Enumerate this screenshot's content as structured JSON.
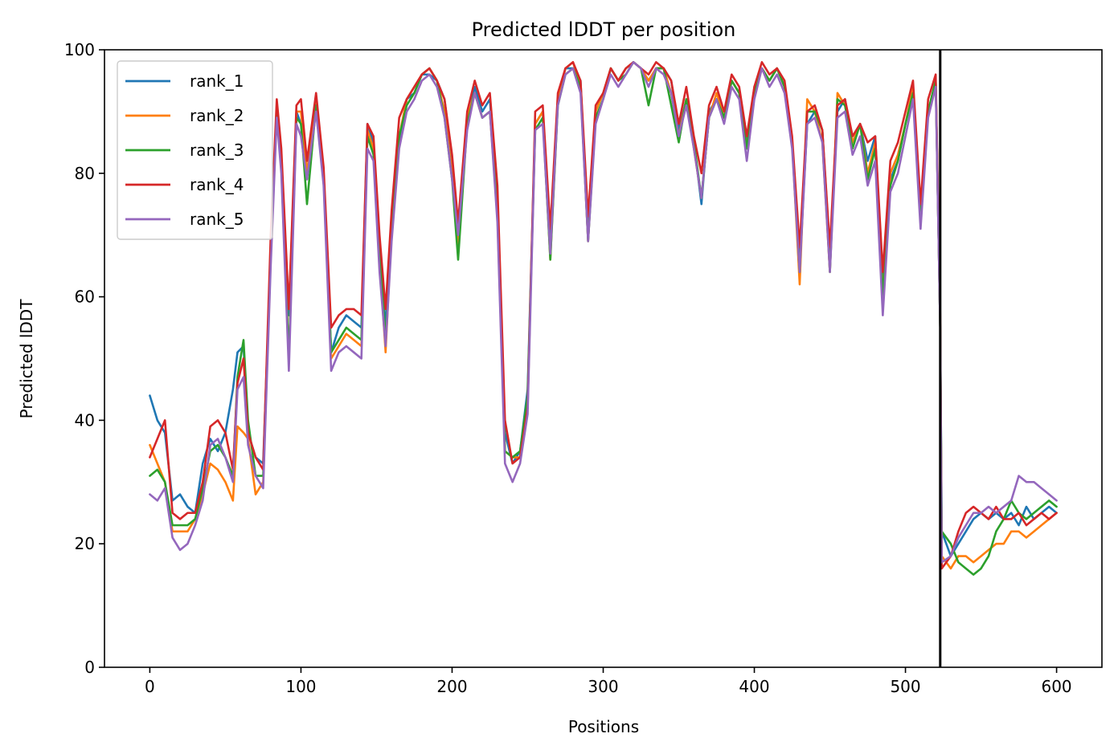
{
  "chart_data": {
    "type": "line",
    "title": "Predicted lDDT per position",
    "xlabel": "Positions",
    "ylabel": "Predicted lDDT",
    "xlim": [
      -30,
      630
    ],
    "ylim": [
      0,
      100
    ],
    "xticks": [
      0,
      100,
      200,
      300,
      400,
      500,
      600
    ],
    "yticks": [
      0,
      20,
      40,
      60,
      80,
      100
    ],
    "grid": false,
    "legend_position": "upper-left",
    "vertical_line_x": 523,
    "x": [
      0,
      5,
      10,
      15,
      20,
      25,
      30,
      35,
      40,
      45,
      50,
      55,
      58,
      62,
      65,
      70,
      75,
      80,
      84,
      87,
      92,
      97,
      100,
      104,
      110,
      115,
      120,
      125,
      130,
      135,
      140,
      144,
      148,
      152,
      156,
      160,
      165,
      170,
      175,
      180,
      185,
      190,
      195,
      200,
      204,
      210,
      215,
      220,
      225,
      230,
      235,
      240,
      245,
      250,
      255,
      260,
      265,
      270,
      275,
      280,
      285,
      290,
      295,
      300,
      305,
      310,
      315,
      320,
      325,
      330,
      335,
      340,
      345,
      350,
      355,
      360,
      365,
      370,
      375,
      380,
      385,
      390,
      395,
      400,
      405,
      410,
      415,
      420,
      425,
      430,
      435,
      440,
      445,
      450,
      455,
      460,
      465,
      470,
      475,
      480,
      485,
      490,
      495,
      500,
      505,
      510,
      515,
      520,
      523,
      524,
      530,
      535,
      540,
      545,
      550,
      555,
      560,
      565,
      570,
      575,
      580,
      585,
      590,
      595,
      600
    ],
    "series": [
      {
        "name": "rank_1",
        "color": "#1f77b4",
        "values": [
          44,
          40,
          38,
          27,
          28,
          26,
          25,
          33,
          37,
          35,
          38,
          45,
          51,
          52,
          38,
          34,
          33,
          67,
          90,
          82,
          57,
          90,
          88,
          80,
          91,
          80,
          51,
          55,
          57,
          56,
          55,
          88,
          85,
          69,
          55,
          70,
          85,
          92,
          93,
          96,
          96,
          95,
          92,
          82,
          70,
          88,
          94,
          90,
          92,
          75,
          38,
          33,
          35,
          45,
          88,
          90,
          68,
          92,
          97,
          97,
          95,
          70,
          90,
          93,
          97,
          95,
          97,
          98,
          97,
          95,
          97,
          97,
          95,
          87,
          92,
          85,
          75,
          90,
          92,
          89,
          95,
          93,
          85,
          93,
          97,
          95,
          97,
          94,
          85,
          65,
          88,
          90,
          87,
          67,
          90,
          92,
          85,
          88,
          82,
          86,
          62,
          79,
          82,
          88,
          93,
          73,
          90,
          95,
          55,
          22,
          18,
          20,
          22,
          24,
          25,
          24,
          25,
          24,
          25,
          23,
          26,
          24,
          25,
          26,
          25
        ]
      },
      {
        "name": "rank_2",
        "color": "#ff7f0e",
        "values": [
          36,
          33,
          30,
          22,
          22,
          22,
          24,
          28,
          33,
          32,
          30,
          27,
          39,
          38,
          37,
          28,
          30,
          67,
          91,
          82,
          50,
          90,
          90,
          80,
          92,
          80,
          50,
          52,
          54,
          53,
          52,
          87,
          84,
          66,
          51,
          71,
          86,
          92,
          94,
          96,
          97,
          95,
          90,
          80,
          68,
          89,
          93,
          89,
          90,
          73,
          35,
          34,
          34,
          43,
          88,
          90,
          66,
          92,
          97,
          98,
          94,
          69,
          90,
          93,
          97,
          95,
          97,
          98,
          97,
          95,
          97,
          97,
          93,
          86,
          92,
          84,
          76,
          89,
          93,
          89,
          95,
          93,
          84,
          94,
          97,
          95,
          97,
          94,
          85,
          62,
          92,
          90,
          85,
          64,
          93,
          91,
          85,
          88,
          80,
          85,
          60,
          80,
          83,
          88,
          94,
          74,
          90,
          95,
          55,
          18,
          16,
          18,
          18,
          17,
          18,
          19,
          20,
          20,
          22,
          22,
          21,
          22,
          23,
          24,
          25
        ]
      },
      {
        "name": "rank_3",
        "color": "#2ca02c",
        "values": [
          31,
          32,
          30,
          23,
          23,
          23,
          24,
          29,
          35,
          36,
          34,
          31,
          47,
          53,
          40,
          31,
          31,
          67,
          91,
          81,
          50,
          89,
          88,
          75,
          91,
          79,
          51,
          53,
          55,
          54,
          53,
          86,
          83,
          67,
          53,
          70,
          86,
          91,
          93,
          96,
          97,
          95,
          89,
          79,
          66,
          88,
          93,
          89,
          90,
          74,
          35,
          34,
          35,
          44,
          87,
          89,
          66,
          91,
          96,
          97,
          94,
          69,
          89,
          92,
          97,
          95,
          96,
          98,
          97,
          91,
          97,
          97,
          91,
          85,
          92,
          85,
          76,
          89,
          92,
          89,
          95,
          93,
          84,
          93,
          97,
          95,
          97,
          94,
          85,
          64,
          90,
          90,
          87,
          64,
          92,
          91,
          84,
          88,
          79,
          84,
          60,
          78,
          82,
          88,
          93,
          72,
          90,
          95,
          55,
          22,
          20,
          17,
          16,
          15,
          16,
          18,
          22,
          24,
          27,
          25,
          24,
          25,
          26,
          27,
          26
        ]
      },
      {
        "name": "rank_4",
        "color": "#d62728",
        "values": [
          34,
          37,
          40,
          25,
          24,
          25,
          25,
          30,
          39,
          40,
          38,
          32,
          46,
          50,
          38,
          34,
          32,
          70,
          92,
          84,
          58,
          91,
          92,
          82,
          93,
          81,
          55,
          57,
          58,
          58,
          57,
          88,
          86,
          70,
          58,
          74,
          89,
          92,
          94,
          96,
          97,
          95,
          92,
          83,
          72,
          90,
          95,
          91,
          93,
          78,
          40,
          33,
          34,
          42,
          90,
          91,
          71,
          93,
          97,
          98,
          95,
          73,
          91,
          93,
          97,
          95,
          97,
          98,
          97,
          96,
          98,
          97,
          95,
          88,
          94,
          86,
          80,
          91,
          94,
          90,
          96,
          94,
          86,
          94,
          98,
          96,
          97,
          95,
          86,
          68,
          90,
          91,
          87,
          68,
          91,
          92,
          86,
          88,
          85,
          86,
          64,
          82,
          85,
          90,
          95,
          75,
          92,
          96,
          57,
          16,
          18,
          22,
          25,
          26,
          25,
          24,
          26,
          24,
          24,
          25,
          23,
          24,
          25,
          24,
          25
        ]
      },
      {
        "name": "rank_5",
        "color": "#9467bd",
        "values": [
          28,
          27,
          29,
          21,
          19,
          20,
          23,
          27,
          36,
          37,
          34,
          30,
          45,
          47,
          36,
          31,
          29,
          65,
          89,
          80,
          48,
          88,
          86,
          79,
          90,
          78,
          48,
          51,
          52,
          51,
          50,
          84,
          82,
          64,
          52,
          69,
          84,
          90,
          92,
          95,
          96,
          94,
          89,
          79,
          70,
          87,
          93,
          89,
          90,
          72,
          33,
          30,
          33,
          41,
          87,
          88,
          67,
          91,
          96,
          97,
          93,
          69,
          88,
          92,
          96,
          94,
          96,
          98,
          97,
          94,
          97,
          96,
          93,
          86,
          91,
          84,
          76,
          89,
          92,
          88,
          94,
          92,
          82,
          92,
          97,
          94,
          96,
          93,
          84,
          64,
          88,
          89,
          85,
          64,
          89,
          90,
          83,
          86,
          78,
          82,
          57,
          77,
          80,
          86,
          92,
          71,
          89,
          94,
          55,
          17,
          18,
          21,
          23,
          25,
          25,
          26,
          25,
          26,
          27,
          31,
          30,
          30,
          29,
          28,
          27
        ]
      }
    ]
  }
}
